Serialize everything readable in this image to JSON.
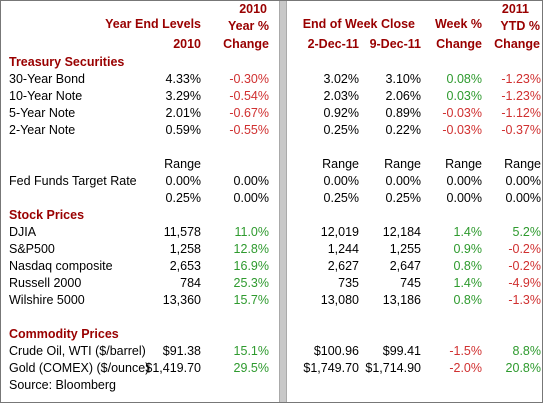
{
  "header": {
    "year_end": [
      "Year End Levels",
      "2010"
    ],
    "year_change": [
      "2010",
      "Year %",
      "Change"
    ],
    "week_close": "End of Week Close",
    "dec2": "2-Dec-11",
    "dec9": "9-Dec-11",
    "week_change": [
      "Week %",
      "Change"
    ],
    "ytd_change": [
      "2011",
      "YTD %",
      "Change"
    ]
  },
  "sections": [
    {
      "title": "Treasury Securities",
      "rows": [
        {
          "label": "30-Year Bond",
          "cells": [
            "4.33%",
            "-0.30%",
            "3.02%",
            "3.10%",
            "0.08%",
            "-1.23%"
          ]
        },
        {
          "label": "10-Year Note",
          "cells": [
            "3.29%",
            "-0.54%",
            "2.03%",
            "2.06%",
            "0.03%",
            "-1.23%"
          ]
        },
        {
          "label": "5-Year Note",
          "cells": [
            "2.01%",
            "-0.67%",
            "0.92%",
            "0.89%",
            "-0.03%",
            "-1.12%"
          ]
        },
        {
          "label": "2-Year Note",
          "cells": [
            "0.59%",
            "-0.55%",
            "0.25%",
            "0.22%",
            "-0.03%",
            "-0.37%"
          ]
        }
      ]
    },
    {
      "title": null,
      "rows": [
        {
          "label": null,
          "cells": [
            "Range",
            null,
            "Range",
            "Range",
            "Range",
            "Range"
          ]
        },
        {
          "label": "Fed Funds Target Rate",
          "cells": [
            "0.00%",
            "0.00%",
            "0.00%",
            "0.00%",
            "0.00%",
            "0.00%"
          ]
        },
        {
          "label": null,
          "cells": [
            "0.25%",
            "0.00%",
            "0.25%",
            "0.25%",
            "0.00%",
            "0.00%"
          ]
        }
      ]
    },
    {
      "title": "Stock Prices",
      "rows": [
        {
          "label": "DJIA",
          "cells": [
            "11,578",
            "11.0%",
            "12,019",
            "12,184",
            "1.4%",
            "5.2%"
          ]
        },
        {
          "label": "S&P500",
          "cells": [
            "1,258",
            "12.8%",
            "1,244",
            "1,255",
            "0.9%",
            "-0.2%"
          ]
        },
        {
          "label": "Nasdaq composite",
          "cells": [
            "2,653",
            "16.9%",
            "2,627",
            "2,647",
            "0.8%",
            "-0.2%"
          ]
        },
        {
          "label": "Russell 2000",
          "cells": [
            "784",
            "25.3%",
            "735",
            "745",
            "1.4%",
            "-4.9%"
          ]
        },
        {
          "label": "Wilshire 5000",
          "cells": [
            "13,360",
            "15.7%",
            "13,080",
            "13,186",
            "0.8%",
            "-1.3%"
          ]
        }
      ]
    },
    {
      "title": "Commodity Prices",
      "rows": [
        {
          "label": "Crude Oil, WTI ($/barrel)",
          "cells": [
            "$91.38",
            "15.1%",
            "$100.96",
            "$99.41",
            "-1.5%",
            "8.8%"
          ]
        },
        {
          "label": "Gold (COMEX) ($/ounce)",
          "cells": [
            "$1,419.70",
            "29.5%",
            "$1,749.70",
            "$1,714.90",
            "-2.0%",
            "20.8%"
          ]
        }
      ]
    }
  ],
  "source": "Source: Bloomberg"
}
